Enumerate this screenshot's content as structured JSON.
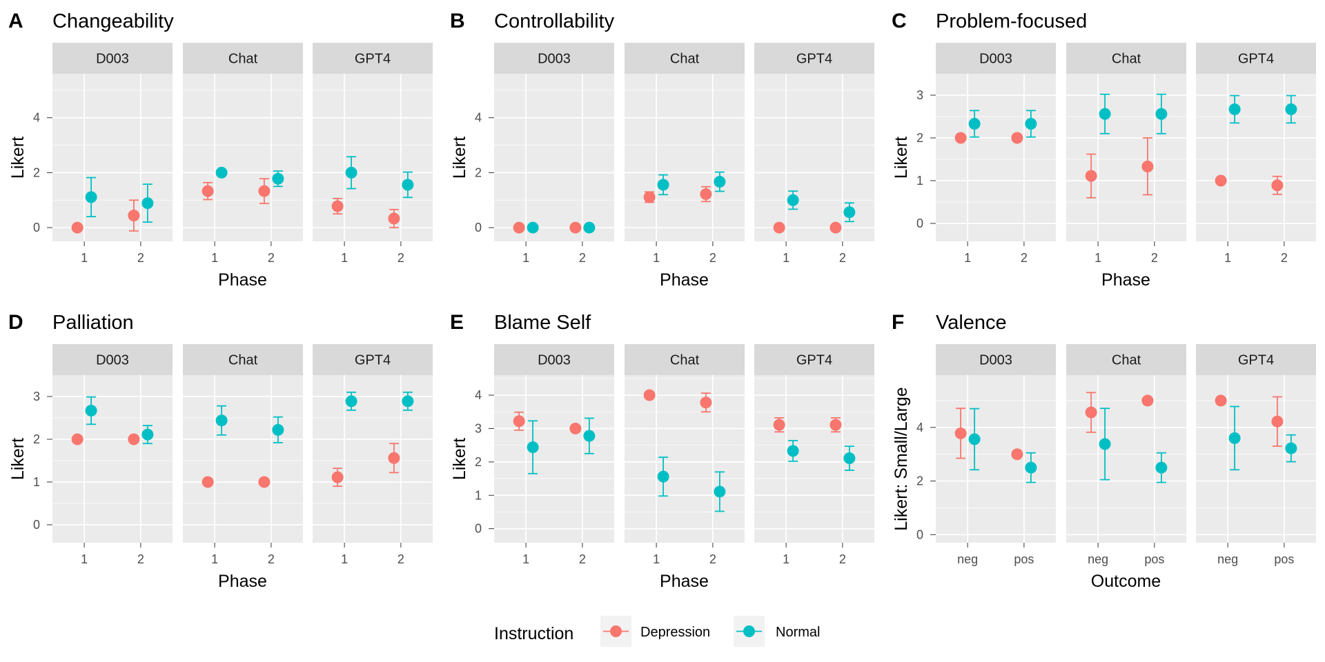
{
  "colors": {
    "Depression": "#F8766D",
    "Normal": "#00BFC4",
    "panel_bg": "#EBEBEB",
    "strip_bg": "#D9D9D9",
    "grid": "#FFFFFF",
    "text": "#000000",
    "tick_text": "#4D4D4D"
  },
  "legend": {
    "title": "Instruction",
    "items": [
      "Depression",
      "Normal"
    ]
  },
  "chart_data": [
    {
      "letter": "A",
      "type": "scatter",
      "title": "Changeability",
      "xlabel": "Phase",
      "ylabel": "Likert",
      "facets": [
        "D003",
        "Chat",
        "GPT4"
      ],
      "x_ticks": [
        "1",
        "2"
      ],
      "y_ticks": [
        0,
        2,
        4
      ],
      "ylim": [
        -0.5,
        5.6
      ],
      "series": [
        {
          "name": "Depression",
          "facets": [
            {
              "points": [
                {
                  "x": "1",
                  "y": 0,
                  "lo": 0,
                  "hi": 0
                },
                {
                  "x": "2",
                  "y": 0.44,
                  "lo": -0.12,
                  "hi": 1.0
                }
              ]
            },
            {
              "points": [
                {
                  "x": "1",
                  "y": 1.33,
                  "lo": 1.02,
                  "hi": 1.64
                },
                {
                  "x": "2",
                  "y": 1.33,
                  "lo": 0.88,
                  "hi": 1.78
                }
              ]
            },
            {
              "points": [
                {
                  "x": "1",
                  "y": 0.78,
                  "lo": 0.5,
                  "hi": 1.06
                },
                {
                  "x": "2",
                  "y": 0.33,
                  "lo": 0.0,
                  "hi": 0.66
                }
              ]
            }
          ]
        },
        {
          "name": "Normal",
          "facets": [
            {
              "points": [
                {
                  "x": "1",
                  "y": 1.11,
                  "lo": 0.4,
                  "hi": 1.82
                },
                {
                  "x": "2",
                  "y": 0.89,
                  "lo": 0.2,
                  "hi": 1.58
                }
              ]
            },
            {
              "points": [
                {
                  "x": "1",
                  "y": 2.0,
                  "lo": 2.0,
                  "hi": 2.0
                },
                {
                  "x": "2",
                  "y": 1.78,
                  "lo": 1.5,
                  "hi": 2.06
                }
              ]
            },
            {
              "points": [
                {
                  "x": "1",
                  "y": 2.0,
                  "lo": 1.42,
                  "hi": 2.58
                },
                {
                  "x": "2",
                  "y": 1.56,
                  "lo": 1.1,
                  "hi": 2.02
                }
              ]
            }
          ]
        }
      ]
    },
    {
      "letter": "B",
      "type": "scatter",
      "title": "Controllability",
      "xlabel": "Phase",
      "ylabel": "Likert",
      "facets": [
        "D003",
        "Chat",
        "GPT4"
      ],
      "x_ticks": [
        "1",
        "2"
      ],
      "y_ticks": [
        0,
        2,
        4
      ],
      "ylim": [
        -0.5,
        5.6
      ],
      "series": [
        {
          "name": "Depression",
          "facets": [
            {
              "points": [
                {
                  "x": "1",
                  "y": 0,
                  "lo": 0,
                  "hi": 0
                },
                {
                  "x": "2",
                  "y": 0,
                  "lo": 0,
                  "hi": 0
                }
              ]
            },
            {
              "points": [
                {
                  "x": "1",
                  "y": 1.11,
                  "lo": 0.92,
                  "hi": 1.3
                },
                {
                  "x": "2",
                  "y": 1.22,
                  "lo": 0.95,
                  "hi": 1.49
                }
              ]
            },
            {
              "points": [
                {
                  "x": "1",
                  "y": 0,
                  "lo": 0,
                  "hi": 0
                },
                {
                  "x": "2",
                  "y": 0,
                  "lo": 0,
                  "hi": 0
                }
              ]
            }
          ]
        },
        {
          "name": "Normal",
          "facets": [
            {
              "points": [
                {
                  "x": "1",
                  "y": 0,
                  "lo": 0,
                  "hi": 0
                },
                {
                  "x": "2",
                  "y": 0,
                  "lo": 0,
                  "hi": 0
                }
              ]
            },
            {
              "points": [
                {
                  "x": "1",
                  "y": 1.56,
                  "lo": 1.2,
                  "hi": 1.92
                },
                {
                  "x": "2",
                  "y": 1.67,
                  "lo": 1.32,
                  "hi": 2.02
                }
              ]
            },
            {
              "points": [
                {
                  "x": "1",
                  "y": 1.0,
                  "lo": 0.67,
                  "hi": 1.33
                },
                {
                  "x": "2",
                  "y": 0.56,
                  "lo": 0.22,
                  "hi": 0.9
                }
              ]
            }
          ]
        }
      ]
    },
    {
      "letter": "C",
      "type": "scatter",
      "title": "Problem-focused",
      "xlabel": "Phase",
      "ylabel": "Likert",
      "facets": [
        "D003",
        "Chat",
        "GPT4"
      ],
      "x_ticks": [
        "1",
        "2"
      ],
      "y_ticks": [
        0,
        1,
        2,
        3
      ],
      "ylim": [
        -0.42,
        3.5
      ],
      "series": [
        {
          "name": "Depression",
          "facets": [
            {
              "points": [
                {
                  "x": "1",
                  "y": 2.0,
                  "lo": 2.0,
                  "hi": 2.0
                },
                {
                  "x": "2",
                  "y": 2.0,
                  "lo": 2.0,
                  "hi": 2.0
                }
              ]
            },
            {
              "points": [
                {
                  "x": "1",
                  "y": 1.11,
                  "lo": 0.6,
                  "hi": 1.62
                },
                {
                  "x": "2",
                  "y": 1.33,
                  "lo": 0.67,
                  "hi": 2.0
                }
              ]
            },
            {
              "points": [
                {
                  "x": "1",
                  "y": 1.0,
                  "lo": 1.0,
                  "hi": 1.0
                },
                {
                  "x": "2",
                  "y": 0.89,
                  "lo": 0.68,
                  "hi": 1.1
                }
              ]
            }
          ]
        },
        {
          "name": "Normal",
          "facets": [
            {
              "points": [
                {
                  "x": "1",
                  "y": 2.33,
                  "lo": 2.02,
                  "hi": 2.64
                },
                {
                  "x": "2",
                  "y": 2.33,
                  "lo": 2.02,
                  "hi": 2.64
                }
              ]
            },
            {
              "points": [
                {
                  "x": "1",
                  "y": 2.56,
                  "lo": 2.1,
                  "hi": 3.02
                },
                {
                  "x": "2",
                  "y": 2.56,
                  "lo": 2.1,
                  "hi": 3.02
                }
              ]
            },
            {
              "points": [
                {
                  "x": "1",
                  "y": 2.67,
                  "lo": 2.35,
                  "hi": 2.99
                },
                {
                  "x": "2",
                  "y": 2.67,
                  "lo": 2.35,
                  "hi": 2.99
                }
              ]
            }
          ]
        }
      ]
    },
    {
      "letter": "D",
      "type": "scatter",
      "title": "Palliation",
      "xlabel": "Phase",
      "ylabel": "Likert",
      "facets": [
        "D003",
        "Chat",
        "GPT4"
      ],
      "x_ticks": [
        "1",
        "2"
      ],
      "y_ticks": [
        0,
        1,
        2,
        3
      ],
      "ylim": [
        -0.42,
        3.5
      ],
      "series": [
        {
          "name": "Depression",
          "facets": [
            {
              "points": [
                {
                  "x": "1",
                  "y": 2.0,
                  "lo": 2.0,
                  "hi": 2.0
                },
                {
                  "x": "2",
                  "y": 2.0,
                  "lo": 2.0,
                  "hi": 2.0
                }
              ]
            },
            {
              "points": [
                {
                  "x": "1",
                  "y": 1.0,
                  "lo": 1.0,
                  "hi": 1.0
                },
                {
                  "x": "2",
                  "y": 1.0,
                  "lo": 1.0,
                  "hi": 1.0
                }
              ]
            },
            {
              "points": [
                {
                  "x": "1",
                  "y": 1.11,
                  "lo": 0.9,
                  "hi": 1.32
                },
                {
                  "x": "2",
                  "y": 1.56,
                  "lo": 1.22,
                  "hi": 1.9
                }
              ]
            }
          ]
        },
        {
          "name": "Normal",
          "facets": [
            {
              "points": [
                {
                  "x": "1",
                  "y": 2.67,
                  "lo": 2.35,
                  "hi": 2.99
                },
                {
                  "x": "2",
                  "y": 2.11,
                  "lo": 1.9,
                  "hi": 2.32
                }
              ]
            },
            {
              "points": [
                {
                  "x": "1",
                  "y": 2.44,
                  "lo": 2.1,
                  "hi": 2.78
                },
                {
                  "x": "2",
                  "y": 2.22,
                  "lo": 1.92,
                  "hi": 2.52
                }
              ]
            },
            {
              "points": [
                {
                  "x": "1",
                  "y": 2.89,
                  "lo": 2.68,
                  "hi": 3.1
                },
                {
                  "x": "2",
                  "y": 2.89,
                  "lo": 2.68,
                  "hi": 3.1
                }
              ]
            }
          ]
        }
      ]
    },
    {
      "letter": "E",
      "type": "scatter",
      "title": "Blame Self",
      "xlabel": "Phase",
      "ylabel": "Likert",
      "facets": [
        "D003",
        "Chat",
        "GPT4"
      ],
      "x_ticks": [
        "1",
        "2"
      ],
      "y_ticks": [
        0,
        1,
        2,
        3,
        4
      ],
      "ylim": [
        -0.42,
        4.6
      ],
      "series": [
        {
          "name": "Depression",
          "facets": [
            {
              "points": [
                {
                  "x": "1",
                  "y": 3.22,
                  "lo": 2.95,
                  "hi": 3.49
                },
                {
                  "x": "2",
                  "y": 3.0,
                  "lo": 3.0,
                  "hi": 3.0
                }
              ]
            },
            {
              "points": [
                {
                  "x": "1",
                  "y": 4.0,
                  "lo": 4.0,
                  "hi": 4.0
                },
                {
                  "x": "2",
                  "y": 3.78,
                  "lo": 3.5,
                  "hi": 4.06
                }
              ]
            },
            {
              "points": [
                {
                  "x": "1",
                  "y": 3.11,
                  "lo": 2.9,
                  "hi": 3.32
                },
                {
                  "x": "2",
                  "y": 3.11,
                  "lo": 2.9,
                  "hi": 3.32
                }
              ]
            }
          ]
        },
        {
          "name": "Normal",
          "facets": [
            {
              "points": [
                {
                  "x": "1",
                  "y": 2.44,
                  "lo": 1.65,
                  "hi": 3.23
                },
                {
                  "x": "2",
                  "y": 2.78,
                  "lo": 2.25,
                  "hi": 3.31
                }
              ]
            },
            {
              "points": [
                {
                  "x": "1",
                  "y": 1.56,
                  "lo": 0.98,
                  "hi": 2.14
                },
                {
                  "x": "2",
                  "y": 1.11,
                  "lo": 0.52,
                  "hi": 1.7
                }
              ]
            },
            {
              "points": [
                {
                  "x": "1",
                  "y": 2.33,
                  "lo": 2.02,
                  "hi": 2.64
                },
                {
                  "x": "2",
                  "y": 2.11,
                  "lo": 1.75,
                  "hi": 2.47
                }
              ]
            }
          ]
        }
      ]
    },
    {
      "letter": "F",
      "type": "scatter",
      "title": "Valence",
      "xlabel": "Outcome",
      "ylabel": "Likert: Small/Large",
      "facets": [
        "D003",
        "Chat",
        "GPT4"
      ],
      "x_ticks": [
        "neg",
        "pos"
      ],
      "y_ticks": [
        0,
        2,
        4
      ],
      "ylim": [
        -0.3,
        5.95
      ],
      "series": [
        {
          "name": "Depression",
          "facets": [
            {
              "points": [
                {
                  "x": "neg",
                  "y": 3.78,
                  "lo": 2.85,
                  "hi": 4.71
                },
                {
                  "x": "pos",
                  "y": 3.0,
                  "lo": 3.0,
                  "hi": 3.0
                }
              ]
            },
            {
              "points": [
                {
                  "x": "neg",
                  "y": 4.56,
                  "lo": 3.82,
                  "hi": 5.3
                },
                {
                  "x": "pos",
                  "y": 5.0,
                  "lo": 5.0,
                  "hi": 5.0
                }
              ]
            },
            {
              "points": [
                {
                  "x": "neg",
                  "y": 5.0,
                  "lo": 5.0,
                  "hi": 5.0
                },
                {
                  "x": "pos",
                  "y": 4.22,
                  "lo": 3.3,
                  "hi": 5.14
                }
              ]
            }
          ]
        },
        {
          "name": "Normal",
          "facets": [
            {
              "points": [
                {
                  "x": "neg",
                  "y": 3.56,
                  "lo": 2.42,
                  "hi": 4.7
                },
                {
                  "x": "pos",
                  "y": 2.5,
                  "lo": 1.95,
                  "hi": 3.05
                }
              ]
            },
            {
              "points": [
                {
                  "x": "neg",
                  "y": 3.38,
                  "lo": 2.05,
                  "hi": 4.71
                },
                {
                  "x": "pos",
                  "y": 2.5,
                  "lo": 1.95,
                  "hi": 3.05
                }
              ]
            },
            {
              "points": [
                {
                  "x": "neg",
                  "y": 3.6,
                  "lo": 2.42,
                  "hi": 4.78
                },
                {
                  "x": "pos",
                  "y": 3.22,
                  "lo": 2.72,
                  "hi": 3.72
                }
              ]
            }
          ]
        }
      ]
    }
  ]
}
